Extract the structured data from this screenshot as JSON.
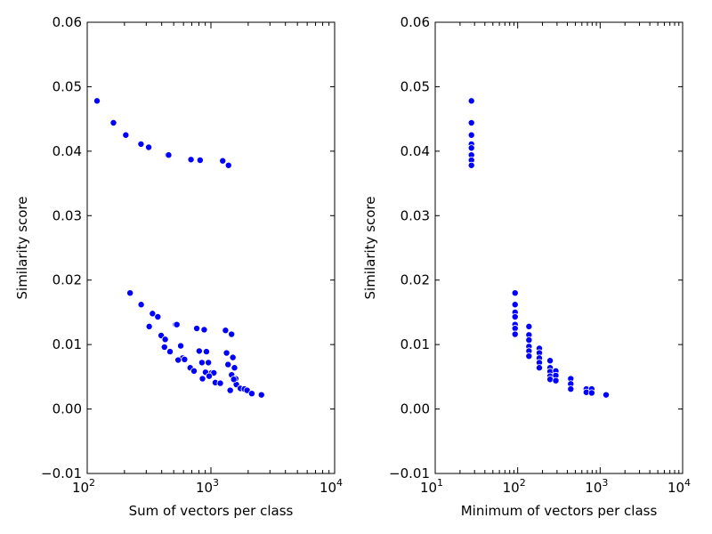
{
  "chart_data": [
    {
      "type": "scatter",
      "xlabel": "Sum of vectors per class",
      "ylabel": "Similarity score",
      "xscale": "log",
      "xlim": [
        100,
        10000
      ],
      "ylim": [
        -0.01,
        0.06
      ],
      "y_ticks": [
        "−0.01",
        "0.00",
        "0.01",
        "0.02",
        "0.03",
        "0.04",
        "0.05",
        "0.06"
      ],
      "x_ticks": [
        {
          "base": "10",
          "exp": "2"
        },
        {
          "base": "10",
          "exp": "3"
        },
        {
          "base": "10",
          "exp": "4"
        }
      ],
      "marker_color": "#0000ff",
      "grid": false,
      "points": [
        [
          120,
          0.0478
        ],
        [
          163,
          0.0444
        ],
        [
          205,
          0.0425
        ],
        [
          272,
          0.0411
        ],
        [
          314,
          0.0406
        ],
        [
          448,
          0.0394
        ],
        [
          455,
          0.0394
        ],
        [
          690,
          0.0387
        ],
        [
          818,
          0.0386
        ],
        [
          1245,
          0.0385
        ],
        [
          1387,
          0.0378
        ],
        [
          222,
          0.018
        ],
        [
          273,
          0.0162
        ],
        [
          337,
          0.0148
        ],
        [
          372,
          0.0143
        ],
        [
          317,
          0.0128
        ],
        [
          519,
          0.0131
        ],
        [
          530,
          0.0131
        ],
        [
          396,
          0.0114
        ],
        [
          427,
          0.0108
        ],
        [
          421,
          0.0096
        ],
        [
          467,
          0.0089
        ],
        [
          570,
          0.0098
        ],
        [
          768,
          0.0125
        ],
        [
          882,
          0.0123
        ],
        [
          1312,
          0.0122
        ],
        [
          1468,
          0.0116
        ],
        [
          590,
          0.0079
        ],
        [
          612,
          0.0077
        ],
        [
          543,
          0.0076
        ],
        [
          804,
          0.009
        ],
        [
          920,
          0.0089
        ],
        [
          1338,
          0.0087
        ],
        [
          1505,
          0.008
        ],
        [
          846,
          0.0072
        ],
        [
          954,
          0.0072
        ],
        [
          1375,
          0.0069
        ],
        [
          1551,
          0.0064
        ],
        [
          680,
          0.0064
        ],
        [
          730,
          0.0059
        ],
        [
          1010,
          0.0056
        ],
        [
          1055,
          0.0056
        ],
        [
          904,
          0.0057
        ],
        [
          968,
          0.0051
        ],
        [
          1470,
          0.0053
        ],
        [
          1585,
          0.0047
        ],
        [
          855,
          0.0047
        ],
        [
          1085,
          0.0041
        ],
        [
          1190,
          0.004
        ],
        [
          1432,
          0.0029
        ],
        [
          1605,
          0.0038
        ],
        [
          1730,
          0.0032
        ],
        [
          1865,
          0.0031
        ],
        [
          1960,
          0.0029
        ],
        [
          2140,
          0.0024
        ],
        [
          2560,
          0.0022
        ],
        [
          1530,
          0.0046
        ]
      ]
    },
    {
      "type": "scatter",
      "xlabel": "Minimum of vectors per class",
      "ylabel": "Similarity score",
      "xscale": "log",
      "xlim": [
        10,
        10000
      ],
      "ylim": [
        -0.01,
        0.06
      ],
      "y_ticks": [
        "−0.01",
        "0.00",
        "0.01",
        "0.02",
        "0.03",
        "0.04",
        "0.05",
        "0.06"
      ],
      "x_ticks": [
        {
          "base": "10",
          "exp": "1"
        },
        {
          "base": "10",
          "exp": "2"
        },
        {
          "base": "10",
          "exp": "3"
        },
        {
          "base": "10",
          "exp": "4"
        }
      ],
      "marker_color": "#0000ff",
      "grid": false,
      "points": [
        [
          27.5,
          0.0478
        ],
        [
          27.5,
          0.0444
        ],
        [
          27.5,
          0.0425
        ],
        [
          27.5,
          0.0411
        ],
        [
          27.5,
          0.0405
        ],
        [
          27.5,
          0.0394
        ],
        [
          27.5,
          0.0386
        ],
        [
          27.5,
          0.0378
        ],
        [
          93,
          0.018
        ],
        [
          93,
          0.0162
        ],
        [
          93,
          0.015
        ],
        [
          93,
          0.0143
        ],
        [
          93,
          0.0131
        ],
        [
          93,
          0.0125
        ],
        [
          93,
          0.0116
        ],
        [
          137,
          0.0128
        ],
        [
          137,
          0.0115
        ],
        [
          137,
          0.0107
        ],
        [
          137,
          0.0097
        ],
        [
          137,
          0.009
        ],
        [
          137,
          0.0082
        ],
        [
          183,
          0.0094
        ],
        [
          183,
          0.0087
        ],
        [
          183,
          0.0079
        ],
        [
          183,
          0.0072
        ],
        [
          183,
          0.0064
        ],
        [
          247,
          0.0075
        ],
        [
          247,
          0.0064
        ],
        [
          247,
          0.0058
        ],
        [
          247,
          0.0051
        ],
        [
          247,
          0.0046
        ],
        [
          290,
          0.0059
        ],
        [
          290,
          0.0052
        ],
        [
          290,
          0.0044
        ],
        [
          440,
          0.0047
        ],
        [
          440,
          0.0039
        ],
        [
          440,
          0.0031
        ],
        [
          680,
          0.0031
        ],
        [
          680,
          0.0026
        ],
        [
          790,
          0.0031
        ],
        [
          790,
          0.0025
        ],
        [
          1180,
          0.0022
        ]
      ]
    }
  ]
}
